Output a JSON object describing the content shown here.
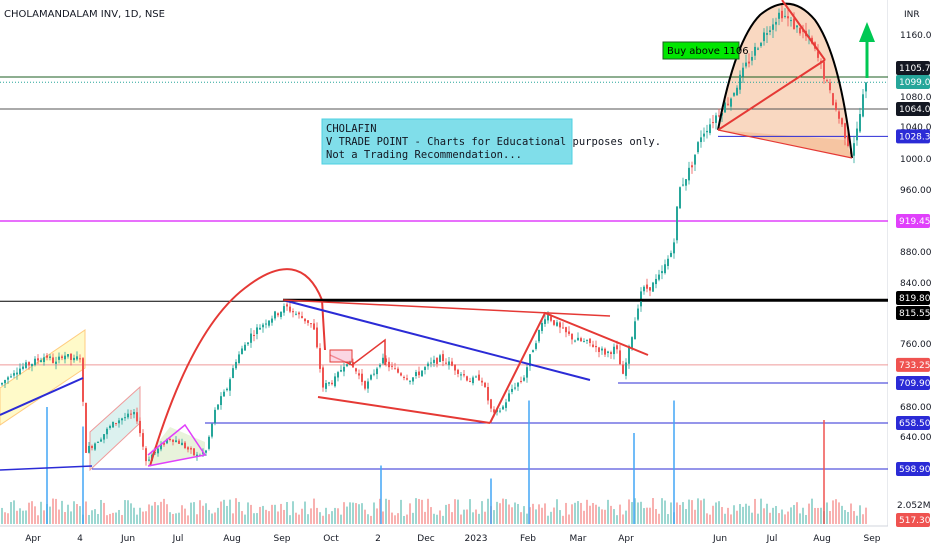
{
  "header": {
    "symbol_title": "CHOLAMANDALAM INV, 1D, NSE",
    "currency": "INR"
  },
  "annotations": {
    "note_lines": [
      "CHOLAFIN",
      "V TRADE POINT - Charts for Educational purposes only.",
      "Not a Trading Recommendation..."
    ],
    "buy_label": "Buy above 1106"
  },
  "colors": {
    "up": "#26a69a",
    "down": "#ef5350",
    "trend_red": "#e53935",
    "trend_blue": "#2b2bd6",
    "magenta": "#e040fb",
    "cup_fill": "#f4b183",
    "note_bg": "#80deea",
    "buy_bg": "#00e600",
    "arrow": "#00c853"
  },
  "chart_data": {
    "type": "candlestick",
    "title": "CHOLAMANDALAM INV, 1D, NSE",
    "ylim": [
      517.3,
      1200
    ],
    "y_ticks": [
      {
        "value": 1160,
        "label": "1160.00"
      },
      {
        "value": 1080,
        "label": "1080.00"
      },
      {
        "value": 1040,
        "label": "1040.00"
      },
      {
        "value": 1000,
        "label": "1000.00"
      },
      {
        "value": 960,
        "label": "960.00"
      },
      {
        "value": 880,
        "label": "880.00"
      },
      {
        "value": 840,
        "label": "840.00"
      },
      {
        "value": 760,
        "label": "760.00"
      },
      {
        "value": 680,
        "label": "680.00"
      },
      {
        "value": 640,
        "label": "640.00"
      }
    ],
    "x_ticks": [
      {
        "label": "Apr"
      },
      {
        "label": "4"
      },
      {
        "label": "Jun"
      },
      {
        "label": "Jul"
      },
      {
        "label": "Aug"
      },
      {
        "label": "Sep"
      },
      {
        "label": "Oct"
      },
      {
        "label": "2"
      },
      {
        "label": "Dec"
      },
      {
        "label": "2023"
      },
      {
        "label": "Feb"
      },
      {
        "label": "Mar"
      },
      {
        "label": "Apr"
      },
      {
        "label": "Jun"
      },
      {
        "label": "Jul"
      },
      {
        "label": "Aug"
      },
      {
        "label": "Sep"
      }
    ],
    "price_levels": [
      {
        "value": 1105.75,
        "label": "1105.75",
        "bg": "#131722"
      },
      {
        "value": 1099.05,
        "label": "1099.05",
        "bg": "#26a69a"
      },
      {
        "value": 1064.0,
        "label": "1064.00",
        "bg": "#131722"
      },
      {
        "value": 1028.3,
        "label": "1028.30",
        "bg": "#2b2bd6"
      },
      {
        "value": 919.45,
        "label": "919.45",
        "bg": "#e040fb"
      },
      {
        "value": 819.8,
        "label": "819.80",
        "bg": "#000000"
      },
      {
        "value": 815.55,
        "label": "815.55",
        "bg": "#000000"
      },
      {
        "value": 733.25,
        "label": "733.25",
        "bg": "#ef5350"
      },
      {
        "value": 709.9,
        "label": "709.90",
        "bg": "#2b2bd6"
      },
      {
        "value": 658.5,
        "label": "658.50",
        "bg": "#2b2bd6"
      },
      {
        "value": 598.9,
        "label": "598.90",
        "bg": "#2b2bd6"
      },
      {
        "value": 517.3,
        "label": "517.30",
        "bg": "#ef5350"
      }
    ],
    "volume_label": "2.052M",
    "waypoints": [
      [
        0,
        708
      ],
      [
        12,
        725
      ],
      [
        30,
        735
      ],
      [
        45,
        745
      ],
      [
        55,
        735
      ],
      [
        62,
        748
      ],
      [
        72,
        738
      ],
      [
        80,
        745
      ],
      [
        84,
        622
      ],
      [
        90,
        628
      ],
      [
        100,
        640
      ],
      [
        110,
        655
      ],
      [
        120,
        665
      ],
      [
        135,
        670
      ],
      [
        145,
        610
      ],
      [
        158,
        625
      ],
      [
        168,
        640
      ],
      [
        180,
        632
      ],
      [
        195,
        615
      ],
      [
        205,
        622
      ],
      [
        215,
        680
      ],
      [
        225,
        700
      ],
      [
        235,
        740
      ],
      [
        250,
        772
      ],
      [
        265,
        790
      ],
      [
        285,
        808
      ],
      [
        300,
        795
      ],
      [
        312,
        785
      ],
      [
        322,
        705
      ],
      [
        335,
        715
      ],
      [
        345,
        740
      ],
      [
        355,
        725
      ],
      [
        365,
        705
      ],
      [
        380,
        740
      ],
      [
        395,
        725
      ],
      [
        410,
        715
      ],
      [
        425,
        730
      ],
      [
        440,
        742
      ],
      [
        455,
        728
      ],
      [
        470,
        712
      ],
      [
        480,
        718
      ],
      [
        492,
        668
      ],
      [
        502,
        680
      ],
      [
        512,
        705
      ],
      [
        522,
        715
      ],
      [
        532,
        755
      ],
      [
        545,
        800
      ],
      [
        560,
        778
      ],
      [
        575,
        765
      ],
      [
        590,
        760
      ],
      [
        605,
        748
      ],
      [
        615,
        755
      ],
      [
        622,
        718
      ],
      [
        630,
        765
      ],
      [
        640,
        830
      ],
      [
        650,
        835
      ],
      [
        660,
        850
      ],
      [
        672,
        885
      ],
      [
        678,
        960
      ],
      [
        690,
        990
      ],
      [
        700,
        1030
      ],
      [
        715,
        1055
      ],
      [
        730,
        1080
      ],
      [
        745,
        1120
      ],
      [
        760,
        1155
      ],
      [
        770,
        1175
      ],
      [
        780,
        1190
      ],
      [
        790,
        1175
      ],
      [
        800,
        1165
      ],
      [
        810,
        1150
      ],
      [
        820,
        1120
      ],
      [
        830,
        1080
      ],
      [
        840,
        1045
      ],
      [
        850,
        1010
      ],
      [
        856,
        1035
      ],
      [
        862,
        1080
      ],
      [
        866,
        1099
      ]
    ],
    "volume_spikes": [
      {
        "x": 46,
        "h": 0.9
      },
      {
        "x": 82,
        "h": 0.75
      },
      {
        "x": 380,
        "h": 0.45
      },
      {
        "x": 490,
        "h": 0.35
      },
      {
        "x": 528,
        "h": 0.95
      },
      {
        "x": 633,
        "h": 0.7
      },
      {
        "x": 673,
        "h": 0.95
      },
      {
        "x": 823,
        "h": 0.8
      }
    ]
  }
}
